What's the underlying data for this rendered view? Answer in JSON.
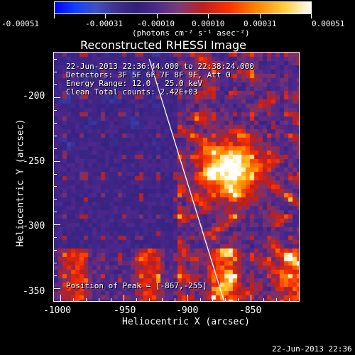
{
  "colorbar": {
    "tick_labels": [
      "-0.00051",
      "-0.00031",
      "-0.00010",
      "0.00010",
      "0.00031",
      "0.00051"
    ],
    "unit_label": "(photons cm⁻² s⁻¹ asec⁻²)"
  },
  "plot": {
    "title": "Reconstructed RHESSI Image",
    "xlabel": "Heliocentric X (arcsec)",
    "ylabel": "Heliocentric Y (arcsec)",
    "x_ticks": [
      "-1000",
      "-950",
      "-900",
      "-850"
    ],
    "y_ticks": [
      "-200",
      "-250",
      "-300",
      "-350"
    ],
    "info_lines": [
      "22-Jun-2013 22:36:44.000 to 22:38:24.000",
      "Detectors: 3F 5F 6F 7F 8F 9F, Att 0",
      "Energy Range: 12.0 - 25.0 keV",
      "Clean    Total counts: 2.42E+03"
    ],
    "peak_text": "Position of Peak = [-867,-255]"
  },
  "footer": {
    "timestamp": "22-Jun-2013 22:36"
  },
  "chart_data": {
    "type": "heatmap",
    "title": "Reconstructed RHESSI Image",
    "xlabel": "Heliocentric X (arcsec)",
    "ylabel": "Heliocentric Y (arcsec)",
    "xlim": [
      -1005,
      -812
    ],
    "ylim": [
      -360,
      -165
    ],
    "colorbar_range": [
      -0.00051,
      0.00051
    ],
    "peak": [
      -867,
      -255
    ],
    "limb_line": {
      "x1": -930,
      "y1": -170,
      "x2": -871,
      "y2": -360
    }
  },
  "colors": {
    "axis": "#ffffff",
    "background": "#000000",
    "limb": "#ffffff"
  }
}
